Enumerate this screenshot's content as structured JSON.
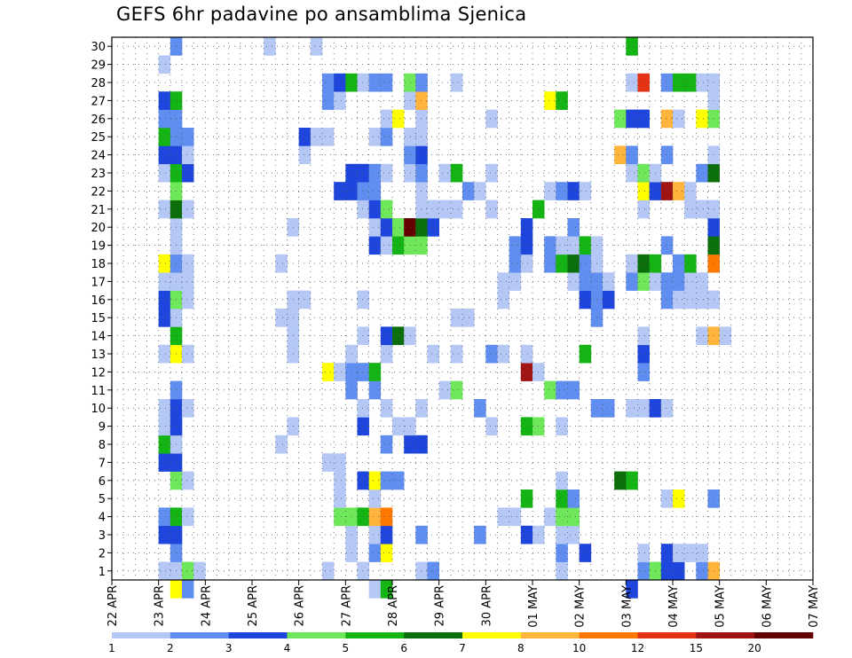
{
  "chart_data": {
    "type": "heatmap",
    "title": "GEFS 6hr padavine po ansamblima Sjenica",
    "xlabel": "",
    "ylabel": "",
    "y_ticks": [
      1,
      2,
      3,
      4,
      5,
      6,
      7,
      8,
      9,
      10,
      11,
      12,
      13,
      14,
      15,
      16,
      17,
      18,
      19,
      20,
      21,
      22,
      23,
      24,
      25,
      26,
      27,
      28,
      29,
      30
    ],
    "x_ticks": [
      "22 APR",
      "23 APR",
      "24 APR",
      "25 APR",
      "26 APR",
      "27 APR",
      "28 APR",
      "29 APR",
      "30 APR",
      "01 MAY",
      "02 MAY",
      "03 MAY",
      "04 MAY",
      "05 MAY",
      "06 MAY",
      "07 MAY"
    ],
    "time_steps_per_day": 4,
    "colorbar": {
      "labels": [
        "1",
        "2",
        "3",
        "4",
        "5",
        "6",
        "7",
        "8",
        "10",
        "12",
        "15",
        "20"
      ],
      "colors": [
        "#b5c8f5",
        "#5f8ef0",
        "#1e46dc",
        "#6ee85a",
        "#14b414",
        "#0a6e0a",
        "#ffff00",
        "#ffb43c",
        "#ff7800",
        "#e63214",
        "#a01414",
        "#640000"
      ]
    },
    "cells": {
      "30": [
        [
          1,
          2
        ],
        [
          9,
          1
        ],
        [
          13,
          1
        ],
        [
          40,
          5
        ]
      ],
      "29": [
        [
          0,
          1
        ]
      ],
      "28": [
        [
          14,
          2
        ],
        [
          15,
          3
        ],
        [
          16,
          5
        ],
        [
          17,
          1
        ],
        [
          18,
          2
        ],
        [
          19,
          2
        ],
        [
          21,
          4
        ],
        [
          22,
          2
        ],
        [
          25,
          1
        ],
        [
          40,
          1
        ],
        [
          41,
          10
        ],
        [
          43,
          2
        ],
        [
          44,
          5
        ],
        [
          45,
          5
        ],
        [
          46,
          1
        ],
        [
          47,
          1
        ]
      ],
      "27": [
        [
          0,
          3
        ],
        [
          1,
          5
        ],
        [
          14,
          2
        ],
        [
          15,
          1
        ],
        [
          21,
          1
        ],
        [
          22,
          8
        ],
        [
          33,
          7
        ],
        [
          34,
          5
        ],
        [
          47,
          1
        ]
      ],
      "26": [
        [
          0,
          2
        ],
        [
          1,
          2
        ],
        [
          19,
          1
        ],
        [
          20,
          7
        ],
        [
          22,
          1
        ],
        [
          28,
          1
        ],
        [
          39,
          4
        ],
        [
          40,
          3
        ],
        [
          41,
          3
        ],
        [
          43,
          8
        ],
        [
          44,
          1
        ],
        [
          46,
          7
        ],
        [
          47,
          4
        ]
      ],
      "25": [
        [
          0,
          5
        ],
        [
          1,
          2
        ],
        [
          2,
          2
        ],
        [
          12,
          3
        ],
        [
          13,
          1
        ],
        [
          14,
          1
        ],
        [
          18,
          1
        ],
        [
          19,
          2
        ],
        [
          21,
          1
        ],
        [
          22,
          1
        ]
      ],
      "24": [
        [
          0,
          3
        ],
        [
          1,
          3
        ],
        [
          2,
          1
        ],
        [
          12,
          1
        ],
        [
          21,
          2
        ],
        [
          22,
          3
        ],
        [
          39,
          8
        ],
        [
          40,
          2
        ],
        [
          43,
          2
        ],
        [
          47,
          1
        ]
      ],
      "23": [
        [
          0,
          1
        ],
        [
          1,
          5
        ],
        [
          2,
          3
        ],
        [
          16,
          3
        ],
        [
          17,
          3
        ],
        [
          18,
          2
        ],
        [
          19,
          1
        ],
        [
          21,
          1
        ],
        [
          22,
          2
        ],
        [
          24,
          1
        ],
        [
          25,
          5
        ],
        [
          28,
          1
        ],
        [
          40,
          1
        ],
        [
          41,
          4
        ],
        [
          42,
          1
        ],
        [
          46,
          2
        ],
        [
          47,
          6
        ]
      ],
      "22": [
        [
          1,
          4
        ],
        [
          15,
          3
        ],
        [
          16,
          3
        ],
        [
          17,
          2
        ],
        [
          18,
          2
        ],
        [
          22,
          1
        ],
        [
          26,
          2
        ],
        [
          27,
          1
        ],
        [
          33,
          1
        ],
        [
          34,
          2
        ],
        [
          35,
          3
        ],
        [
          36,
          1
        ],
        [
          41,
          7
        ],
        [
          42,
          3
        ],
        [
          43,
          11
        ],
        [
          44,
          8
        ],
        [
          45,
          1
        ]
      ],
      "21": [
        [
          0,
          1
        ],
        [
          1,
          6
        ],
        [
          2,
          1
        ],
        [
          17,
          1
        ],
        [
          18,
          3
        ],
        [
          19,
          4
        ],
        [
          22,
          1
        ],
        [
          23,
          1
        ],
        [
          24,
          1
        ],
        [
          25,
          1
        ],
        [
          28,
          1
        ],
        [
          32,
          5
        ],
        [
          41,
          1
        ],
        [
          45,
          1
        ],
        [
          46,
          1
        ],
        [
          47,
          1
        ]
      ],
      "20": [
        [
          1,
          1
        ],
        [
          11,
          1
        ],
        [
          18,
          1
        ],
        [
          19,
          3
        ],
        [
          20,
          4
        ],
        [
          21,
          12
        ],
        [
          22,
          6
        ],
        [
          23,
          3
        ],
        [
          31,
          3
        ],
        [
          35,
          2
        ],
        [
          47,
          3
        ]
      ],
      "19": [
        [
          1,
          1
        ],
        [
          18,
          3
        ],
        [
          19,
          1
        ],
        [
          20,
          5
        ],
        [
          21,
          4
        ],
        [
          22,
          4
        ],
        [
          30,
          2
        ],
        [
          31,
          3
        ],
        [
          33,
          2
        ],
        [
          34,
          1
        ],
        [
          35,
          1
        ],
        [
          36,
          5
        ],
        [
          37,
          1
        ],
        [
          43,
          2
        ],
        [
          47,
          6
        ]
      ],
      "18": [
        [
          0,
          7
        ],
        [
          1,
          2
        ],
        [
          2,
          1
        ],
        [
          10,
          1
        ],
        [
          30,
          2
        ],
        [
          31,
          1
        ],
        [
          33,
          2
        ],
        [
          34,
          5
        ],
        [
          35,
          6
        ],
        [
          36,
          2
        ],
        [
          37,
          1
        ],
        [
          40,
          1
        ],
        [
          41,
          6
        ],
        [
          42,
          5
        ],
        [
          44,
          2
        ],
        [
          45,
          5
        ],
        [
          47,
          9
        ]
      ],
      "17": [
        [
          0,
          1
        ],
        [
          1,
          1
        ],
        [
          2,
          1
        ],
        [
          29,
          1
        ],
        [
          30,
          1
        ],
        [
          35,
          1
        ],
        [
          36,
          2
        ],
        [
          37,
          2
        ],
        [
          38,
          1
        ],
        [
          40,
          2
        ],
        [
          41,
          4
        ],
        [
          42,
          1
        ],
        [
          43,
          2
        ],
        [
          44,
          2
        ],
        [
          45,
          1
        ],
        [
          46,
          1
        ]
      ],
      "16": [
        [
          0,
          3
        ],
        [
          1,
          4
        ],
        [
          2,
          1
        ],
        [
          11,
          1
        ],
        [
          12,
          1
        ],
        [
          17,
          1
        ],
        [
          29,
          1
        ],
        [
          36,
          3
        ],
        [
          37,
          2
        ],
        [
          38,
          3
        ],
        [
          43,
          2
        ],
        [
          44,
          1
        ],
        [
          45,
          1
        ],
        [
          46,
          1
        ],
        [
          47,
          1
        ]
      ],
      "15": [
        [
          0,
          3
        ],
        [
          1,
          1
        ],
        [
          10,
          1
        ],
        [
          11,
          1
        ],
        [
          25,
          1
        ],
        [
          26,
          1
        ],
        [
          37,
          2
        ]
      ],
      "14": [
        [
          1,
          5
        ],
        [
          11,
          1
        ],
        [
          17,
          1
        ],
        [
          19,
          3
        ],
        [
          20,
          6
        ],
        [
          21,
          1
        ],
        [
          41,
          1
        ],
        [
          46,
          1
        ],
        [
          47,
          8
        ],
        [
          48,
          1
        ]
      ],
      "13": [
        [
          0,
          1
        ],
        [
          1,
          7
        ],
        [
          2,
          1
        ],
        [
          11,
          1
        ],
        [
          16,
          1
        ],
        [
          19,
          1
        ],
        [
          23,
          1
        ],
        [
          25,
          1
        ],
        [
          28,
          2
        ],
        [
          29,
          1
        ],
        [
          31,
          1
        ],
        [
          36,
          5
        ],
        [
          41,
          3
        ]
      ],
      "12": [
        [
          14,
          7
        ],
        [
          15,
          1
        ],
        [
          16,
          2
        ],
        [
          17,
          2
        ],
        [
          18,
          5
        ],
        [
          31,
          11
        ],
        [
          32,
          1
        ],
        [
          41,
          2
        ]
      ],
      "11": [
        [
          1,
          2
        ],
        [
          16,
          2
        ],
        [
          18,
          2
        ],
        [
          24,
          1
        ],
        [
          25,
          4
        ],
        [
          33,
          4
        ],
        [
          34,
          2
        ],
        [
          35,
          2
        ]
      ],
      "10": [
        [
          0,
          1
        ],
        [
          1,
          3
        ],
        [
          2,
          1
        ],
        [
          17,
          1
        ],
        [
          19,
          1
        ],
        [
          22,
          1
        ],
        [
          27,
          2
        ],
        [
          37,
          2
        ],
        [
          38,
          2
        ],
        [
          40,
          1
        ],
        [
          41,
          1
        ],
        [
          42,
          3
        ],
        [
          43,
          1
        ]
      ],
      "9": [
        [
          0,
          1
        ],
        [
          1,
          3
        ],
        [
          11,
          1
        ],
        [
          17,
          3
        ],
        [
          20,
          1
        ],
        [
          21,
          1
        ],
        [
          28,
          1
        ],
        [
          31,
          5
        ],
        [
          32,
          4
        ],
        [
          34,
          1
        ]
      ],
      "8": [
        [
          0,
          5
        ],
        [
          1,
          1
        ],
        [
          10,
          1
        ],
        [
          19,
          2
        ],
        [
          21,
          3
        ],
        [
          22,
          3
        ]
      ],
      "7": [
        [
          0,
          3
        ],
        [
          1,
          3
        ],
        [
          14,
          1
        ],
        [
          15,
          1
        ]
      ],
      "6": [
        [
          1,
          4
        ],
        [
          2,
          1
        ],
        [
          15,
          1
        ],
        [
          17,
          3
        ],
        [
          18,
          7
        ],
        [
          19,
          2
        ],
        [
          20,
          2
        ],
        [
          34,
          1
        ],
        [
          39,
          6
        ],
        [
          40,
          5
        ]
      ],
      "5": [
        [
          15,
          1
        ],
        [
          18,
          1
        ],
        [
          31,
          5
        ],
        [
          34,
          5
        ],
        [
          35,
          2
        ],
        [
          43,
          1
        ],
        [
          44,
          7
        ],
        [
          47,
          2
        ]
      ],
      "4": [
        [
          0,
          2
        ],
        [
          1,
          5
        ],
        [
          2,
          1
        ],
        [
          15,
          4
        ],
        [
          16,
          4
        ],
        [
          17,
          5
        ],
        [
          18,
          8
        ],
        [
          19,
          9
        ],
        [
          29,
          1
        ],
        [
          30,
          1
        ],
        [
          33,
          1
        ],
        [
          34,
          4
        ],
        [
          35,
          4
        ]
      ],
      "3": [
        [
          0,
          3
        ],
        [
          1,
          3
        ],
        [
          16,
          1
        ],
        [
          18,
          1
        ],
        [
          19,
          3
        ],
        [
          22,
          2
        ],
        [
          27,
          2
        ],
        [
          31,
          3
        ],
        [
          32,
          1
        ],
        [
          34,
          1
        ],
        [
          35,
          1
        ]
      ],
      "2": [
        [
          1,
          2
        ],
        [
          16,
          1
        ],
        [
          18,
          2
        ],
        [
          19,
          7
        ],
        [
          34,
          2
        ],
        [
          36,
          3
        ],
        [
          41,
          1
        ],
        [
          43,
          3
        ],
        [
          44,
          1
        ],
        [
          45,
          1
        ],
        [
          46,
          1
        ]
      ],
      "1": [
        [
          0,
          1
        ],
        [
          1,
          1
        ],
        [
          2,
          4
        ],
        [
          3,
          1
        ],
        [
          14,
          1
        ],
        [
          17,
          1
        ],
        [
          22,
          1
        ],
        [
          23,
          2
        ],
        [
          34,
          1
        ],
        [
          41,
          2
        ],
        [
          42,
          4
        ],
        [
          43,
          3
        ],
        [
          44,
          3
        ],
        [
          46,
          2
        ],
        [
          47,
          8
        ]
      ],
      "0": [
        [
          1,
          7
        ],
        [
          2,
          2
        ],
        [
          18,
          1
        ],
        [
          19,
          5
        ],
        [
          40,
          3
        ]
      ]
    }
  }
}
